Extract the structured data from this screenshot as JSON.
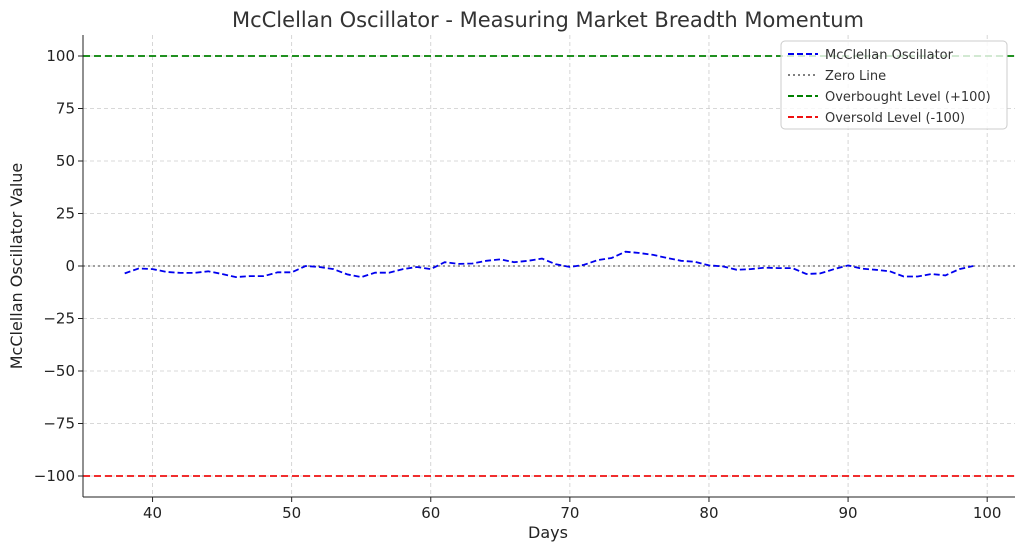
{
  "chart_data": {
    "type": "line",
    "title": "McClellan Oscillator - Measuring Market Breadth Momentum",
    "xlabel": "Days",
    "ylabel": "McClellan Oscillator Value",
    "xlim": [
      35,
      102
    ],
    "ylim": [
      -110,
      110
    ],
    "xticks": [
      40,
      50,
      60,
      70,
      80,
      90,
      100
    ],
    "yticks": [
      100,
      75,
      50,
      25,
      0,
      -25,
      -50,
      -75,
      -100
    ],
    "ytick_labels": [
      "100",
      "75",
      "50",
      "25",
      "0",
      "−25",
      "−50",
      "−75",
      "−100"
    ],
    "grid": true,
    "legend_position": "top-right",
    "series": [
      {
        "name": "McClellan Oscillator",
        "color": "#0000ee",
        "style": "dashed",
        "x": [
          38,
          39,
          40,
          41,
          42,
          43,
          44,
          45,
          46,
          47,
          48,
          49,
          50,
          51,
          52,
          53,
          54,
          55,
          56,
          57,
          58,
          59,
          60,
          61,
          62,
          63,
          64,
          65,
          66,
          67,
          68,
          69,
          70,
          71,
          72,
          73,
          74,
          75,
          76,
          77,
          78,
          79,
          80,
          81,
          82,
          83,
          84,
          85,
          86,
          87,
          88,
          89,
          90,
          91,
          92,
          93,
          94,
          95,
          96,
          97,
          98,
          99
        ],
        "y": [
          -3.5,
          -1.2,
          -1.5,
          -2.8,
          -3.3,
          -3.3,
          -2.5,
          -3.8,
          -5.3,
          -4.8,
          -4.8,
          -3.0,
          -3.0,
          0.0,
          -0.5,
          -1.5,
          -4.0,
          -5.3,
          -3.2,
          -3.2,
          -1.5,
          -0.5,
          -1.5,
          1.8,
          1.0,
          1.2,
          2.5,
          3.2,
          1.8,
          2.5,
          3.5,
          0.8,
          -0.5,
          0.5,
          2.8,
          3.8,
          6.8,
          6.2,
          5.3,
          3.8,
          2.5,
          2.0,
          0.3,
          -0.2,
          -1.8,
          -1.5,
          -0.8,
          -1.0,
          -1.0,
          -3.8,
          -3.5,
          -1.5,
          0.3,
          -1.3,
          -1.8,
          -2.5,
          -5.0,
          -5.0,
          -3.8,
          -4.5,
          -1.5,
          0.0
        ]
      },
      {
        "name": "Zero Line",
        "color": "#808080",
        "style": "dotted",
        "y": 0
      },
      {
        "name": "Overbought Level (+100)",
        "color": "#008000",
        "style": "dashed",
        "y": 100
      },
      {
        "name": "Oversold Level (-100)",
        "color": "#ee1111",
        "style": "dashed",
        "y": -100
      }
    ]
  }
}
